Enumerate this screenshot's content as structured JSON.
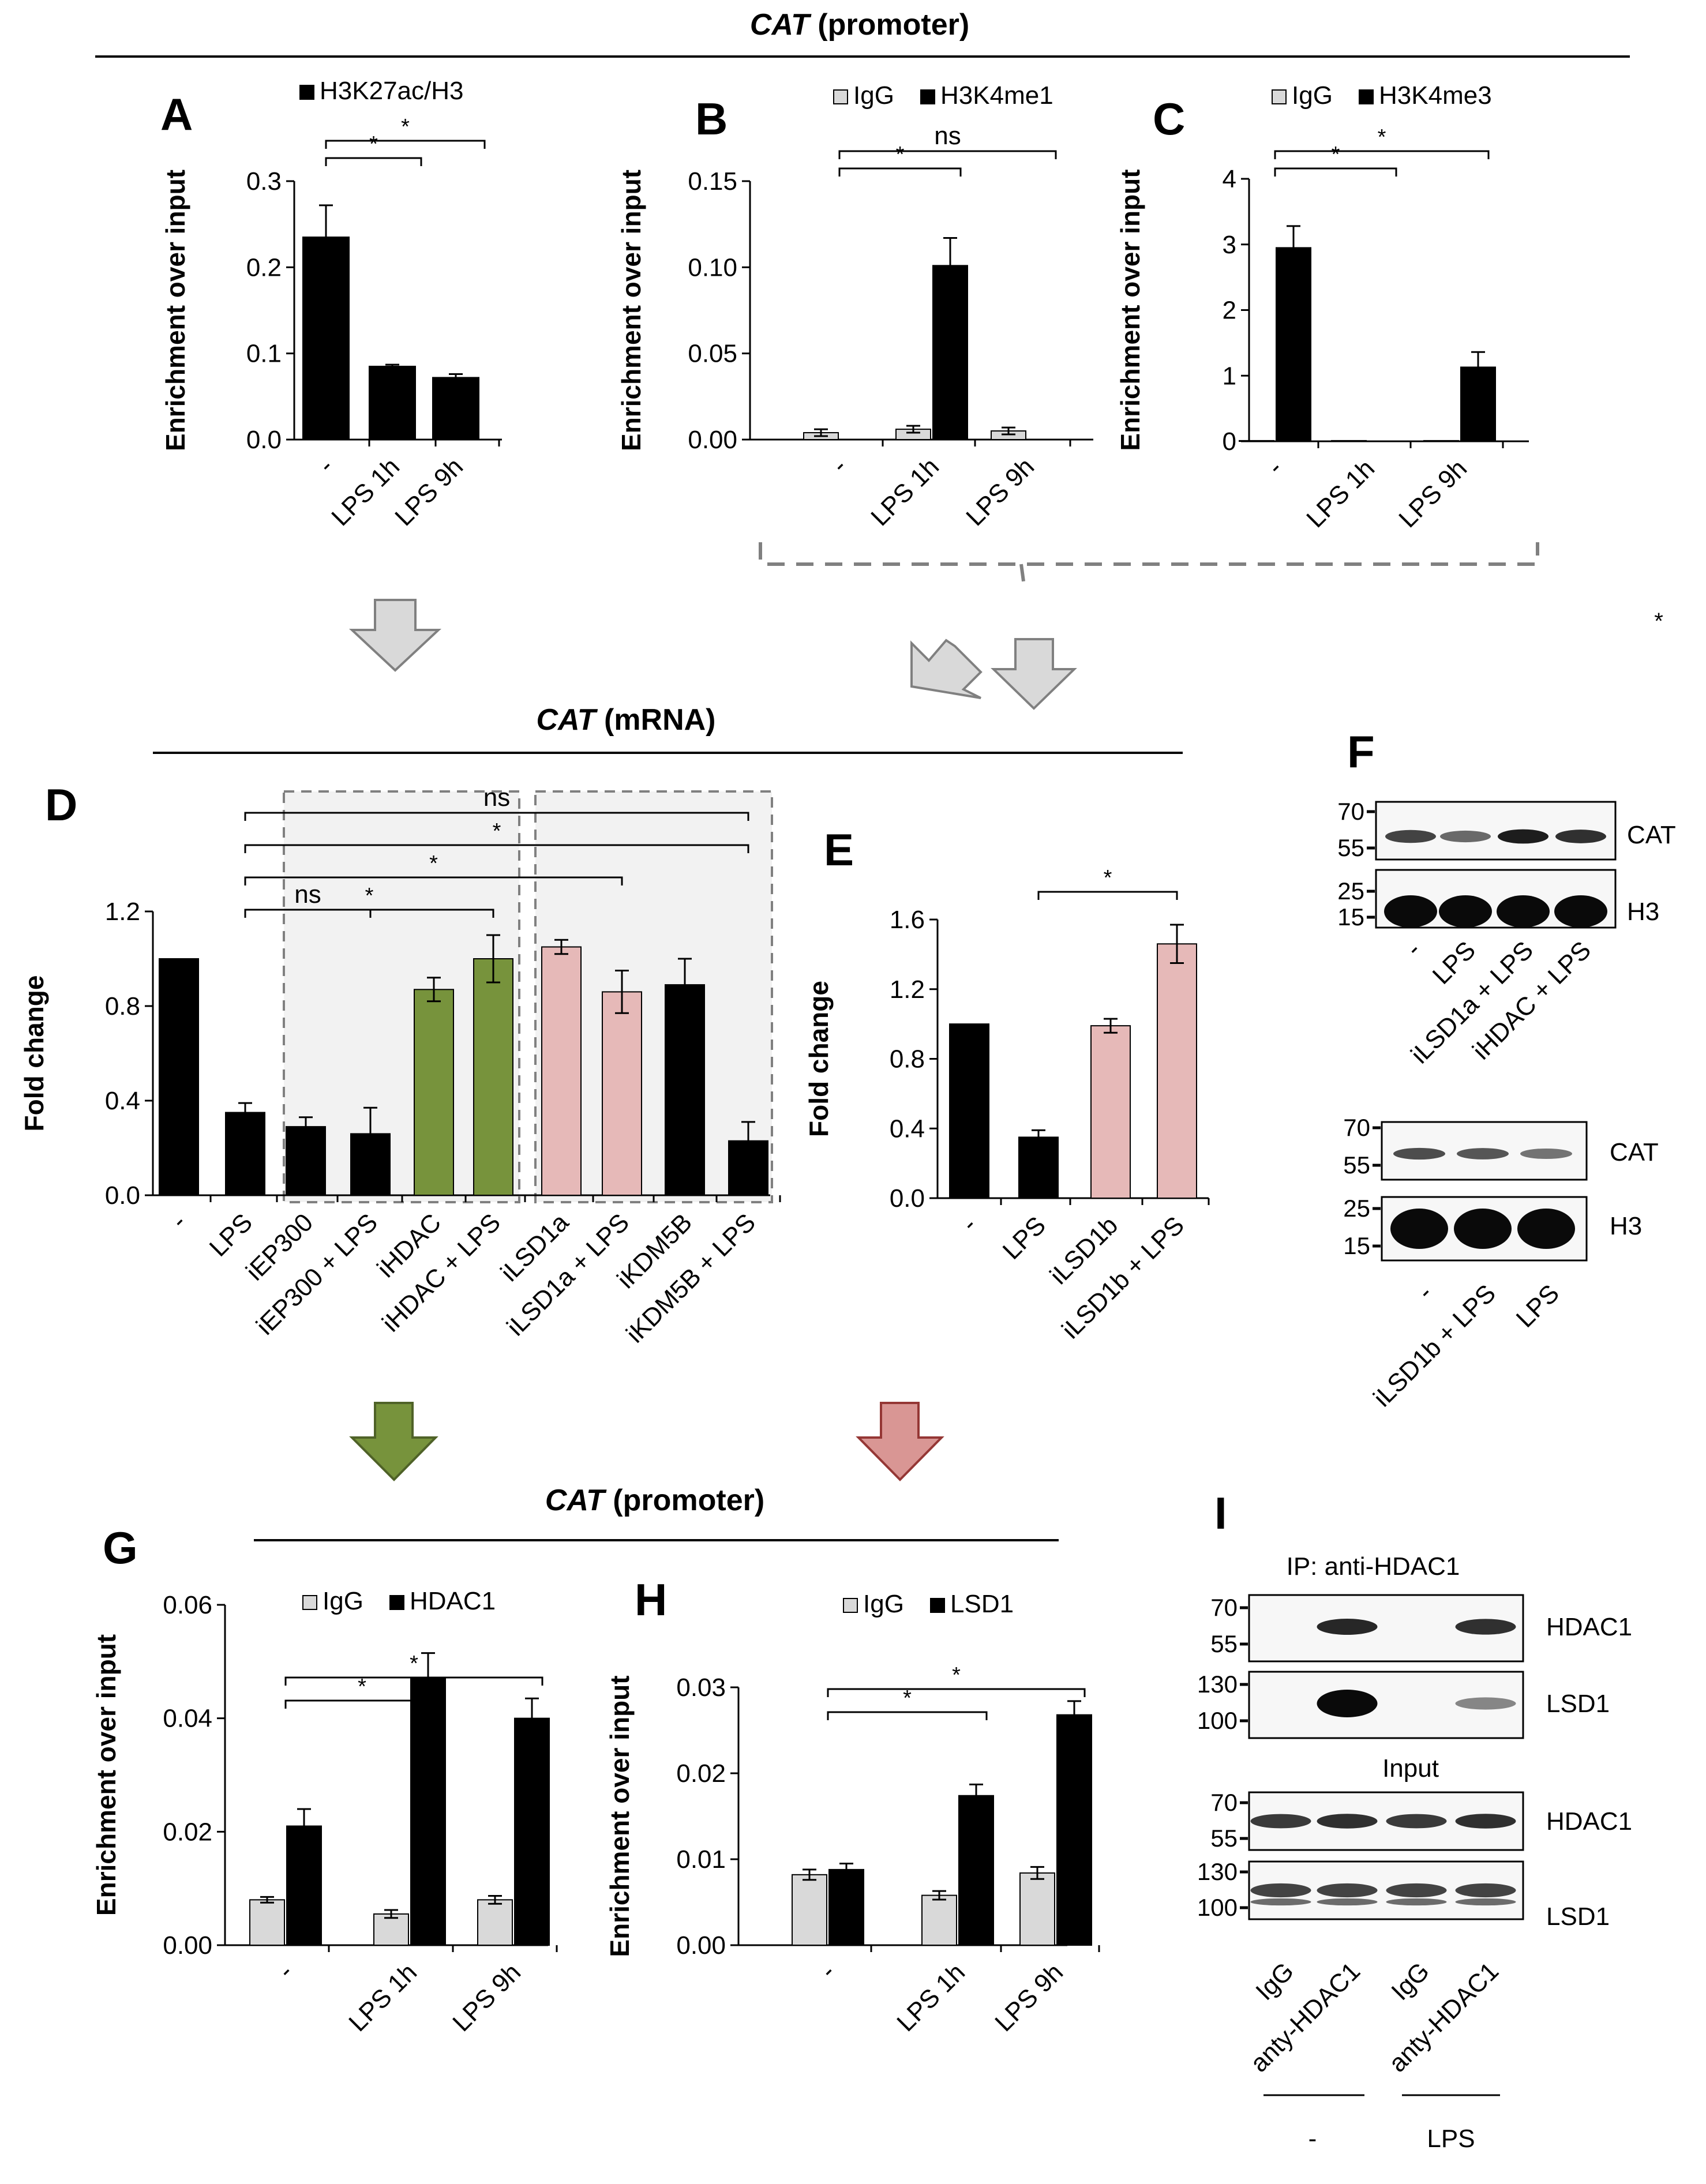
{
  "figure": {
    "sections": [
      {
        "gene": "CAT",
        "suffix": " (promoter)"
      },
      {
        "gene": "CAT",
        "suffix": " (mRNA)"
      },
      {
        "gene": "CAT",
        "suffix": " (promoter)"
      }
    ],
    "stray_mark": "*"
  },
  "colors": {
    "black": "#000000",
    "igg": "#d9d9d9",
    "green": "#77933c",
    "pink": "#e6b9b8",
    "arrow_gray": "#d9d9d9",
    "arrow_green": "#77933c",
    "arrow_pink": "#d99694",
    "shade": "#f2f2f2",
    "dash": "#808080"
  },
  "chart_data": [
    {
      "panel": "A",
      "type": "bar",
      "ylabel": "Enrichment over input",
      "ylim": [
        0,
        0.3
      ],
      "yticks": [
        "0.0",
        "0.1",
        "0.2",
        "0.3"
      ],
      "categories": [
        "-",
        "LPS 1h",
        "LPS 9h"
      ],
      "series": [
        {
          "name": "H3K27ac/H3",
          "color": "#000000",
          "values": [
            0.235,
            0.085,
            0.072
          ],
          "errors": [
            0.037,
            0.002,
            0.004
          ]
        }
      ],
      "brackets": [
        {
          "from": 0,
          "to": 1,
          "label": "*",
          "level": 1
        },
        {
          "from": 0,
          "to": 2,
          "label": "*",
          "level": 2
        }
      ]
    },
    {
      "panel": "B",
      "type": "bar",
      "ylabel": "Enrichment over input",
      "ylim": [
        0,
        0.15
      ],
      "yticks": [
        "0.00",
        "0.05",
        "0.10",
        "0.15"
      ],
      "categories": [
        "-",
        "LPS 1h",
        "LPS 9h"
      ],
      "series": [
        {
          "name": "IgG",
          "color": "#d9d9d9",
          "values": [
            0.004,
            0.006,
            0.005
          ],
          "errors": [
            0.002,
            0.002,
            0.002
          ]
        },
        {
          "name": "H3K4me1",
          "color": "#000000",
          "values": [
            0.0,
            0.101,
            0.0
          ],
          "errors": [
            0,
            0.016,
            0
          ]
        }
      ],
      "brackets": [
        {
          "from": 0,
          "to": 1,
          "label": "*",
          "level": 1
        },
        {
          "from": 0,
          "to": 2,
          "label": "ns",
          "level": 2
        }
      ]
    },
    {
      "panel": "C",
      "type": "bar",
      "ylabel": "Enrichment over input",
      "ylim": [
        0,
        4
      ],
      "yticks": [
        "0",
        "1",
        "2",
        "3",
        "4"
      ],
      "categories": [
        "-",
        "LPS 1h",
        "LPS 9h"
      ],
      "series": [
        {
          "name": "IgG",
          "color": "#d9d9d9",
          "values": [
            0.01,
            0.01,
            0.01
          ],
          "errors": [
            0,
            0,
            0
          ]
        },
        {
          "name": "H3K4me3",
          "color": "#000000",
          "values": [
            2.95,
            0.0,
            1.13
          ],
          "errors": [
            0.33,
            0,
            0.23
          ]
        }
      ],
      "brackets": [
        {
          "from": 0,
          "to": 1,
          "label": "*",
          "level": 1
        },
        {
          "from": 0,
          "to": 2,
          "label": "*",
          "level": 2
        }
      ]
    },
    {
      "panel": "D",
      "type": "bar",
      "ylabel": "Fold change",
      "ylim": [
        0,
        1.2
      ],
      "yticks": [
        "0.0",
        "0.4",
        "0.8",
        "1.2"
      ],
      "categories": [
        "-",
        "LPS",
        "iEP300",
        "iEP300 + LPS",
        "iHDAC",
        "iHDAC + LPS",
        "iLSD1a",
        "iLSD1a + LPS",
        "iKDM5B",
        "iKDM5B + LPS"
      ],
      "series": [
        {
          "name": "Fold change",
          "values": [
            1.0,
            0.35,
            0.29,
            0.26,
            0.87,
            1.0,
            1.05,
            0.86,
            0.89,
            0.23
          ],
          "errors": [
            0,
            0.04,
            0.04,
            0.11,
            0.05,
            0.1,
            0.03,
            0.09,
            0.11,
            0.08
          ],
          "colors": [
            "#000000",
            "#000000",
            "#000000",
            "#000000",
            "#77933c",
            "#77933c",
            "#e6b9b8",
            "#e6b9b8",
            "#000000",
            "#000000"
          ]
        }
      ],
      "brackets": [
        {
          "from": 1,
          "to": 3,
          "label": "ns",
          "level": 1
        },
        {
          "from": 1,
          "to": 5,
          "label": "*",
          "level": 1
        },
        {
          "from": 1,
          "to": 7,
          "label": "*",
          "level": 2
        },
        {
          "from": 1,
          "to": 9,
          "label": "*",
          "level": 3
        },
        {
          "from": 1,
          "to": 9,
          "label": "ns",
          "level": 4
        }
      ]
    },
    {
      "panel": "E",
      "type": "bar",
      "ylabel": "Fold change",
      "ylim": [
        0,
        1.6
      ],
      "yticks": [
        "0.0",
        "0.4",
        "0.8",
        "1.2",
        "1.6"
      ],
      "categories": [
        "-",
        "LPS",
        "iLSD1b",
        "iLSD1b + LPS"
      ],
      "series": [
        {
          "name": "Fold change",
          "values": [
            1.0,
            0.35,
            0.99,
            1.46
          ],
          "errors": [
            0,
            0.04,
            0.04,
            0.11
          ],
          "colors": [
            "#000000",
            "#000000",
            "#e6b9b8",
            "#e6b9b8"
          ]
        }
      ],
      "brackets": [
        {
          "from": 1,
          "to": 3,
          "label": "*",
          "level": 1
        }
      ]
    },
    {
      "panel": "G",
      "type": "bar",
      "ylabel": "Enrichment over input",
      "ylim": [
        0,
        0.06
      ],
      "yticks": [
        "0.00",
        "0.02",
        "0.04",
        "0.06"
      ],
      "categories": [
        "-",
        "LPS 1h",
        "LPS 9h"
      ],
      "series": [
        {
          "name": "IgG",
          "color": "#d9d9d9",
          "values": [
            0.008,
            0.0055,
            0.008
          ],
          "errors": [
            0.0005,
            0.0007,
            0.0007
          ]
        },
        {
          "name": "HDAC1",
          "color": "#000000",
          "values": [
            0.021,
            0.047,
            0.04
          ],
          "errors": [
            0.003,
            0.0045,
            0.0035
          ]
        }
      ],
      "brackets": [
        {
          "from": 0,
          "to": 1,
          "label": "*",
          "level": 1
        },
        {
          "from": 0,
          "to": 2,
          "label": "*",
          "level": 2
        }
      ]
    },
    {
      "panel": "H",
      "type": "bar",
      "ylabel": "Enrichment over input",
      "ylim": [
        0,
        0.03
      ],
      "yticks": [
        "0.00",
        "0.01",
        "0.02",
        "0.03"
      ],
      "categories": [
        "-",
        "LPS 1h",
        "LPS 9h"
      ],
      "series": [
        {
          "name": "IgG",
          "color": "#d9d9d9",
          "values": [
            0.0082,
            0.0058,
            0.0084
          ],
          "errors": [
            0.0006,
            0.0005,
            0.0007
          ]
        },
        {
          "name": "LSD1",
          "color": "#000000",
          "values": [
            0.0088,
            0.0174,
            0.0268
          ],
          "errors": [
            0.0007,
            0.0013,
            0.0016
          ]
        }
      ],
      "brackets": [
        {
          "from": 0,
          "to": 1,
          "label": "*",
          "level": 1
        },
        {
          "from": 0,
          "to": 2,
          "label": "*",
          "level": 2
        }
      ]
    }
  ],
  "blots": {
    "F": {
      "top": {
        "markers": [
          "70",
          "55",
          "25",
          "15"
        ],
        "rows": [
          {
            "label": "CAT",
            "intensity": [
              0.7,
              0.5,
              0.9,
              0.8
            ]
          },
          {
            "label": "H3",
            "intensity": [
              1,
              1,
              1,
              1
            ]
          }
        ],
        "lanes": [
          "-",
          "LPS",
          "iLSD1a + LPS",
          "iHDAC + LPS"
        ]
      },
      "bottom": {
        "markers": [
          "70",
          "55",
          "25",
          "15"
        ],
        "rows": [
          {
            "label": "CAT",
            "intensity": [
              0.65,
              0.6,
              0.45
            ]
          },
          {
            "label": "H3",
            "intensity": [
              1,
              1,
              1
            ]
          }
        ],
        "lanes": [
          "-",
          "iLSD1b + LPS",
          "LPS"
        ]
      }
    },
    "I": {
      "ip_title": "IP: anti-HDAC1",
      "input_title": "Input",
      "ip_rows": [
        {
          "label": "HDAC1",
          "markers": [
            "70",
            "55"
          ],
          "intensity": [
            0,
            0.85,
            0,
            0.8
          ]
        },
        {
          "label": "LSD1",
          "markers": [
            "130",
            "100"
          ],
          "intensity": [
            0,
            1,
            0,
            0.35
          ]
        }
      ],
      "input_rows": [
        {
          "label": "HDAC1",
          "markers": [
            "70",
            "55"
          ],
          "intensity": [
            0.75,
            0.8,
            0.75,
            0.8
          ]
        },
        {
          "label": "LSD1",
          "markers": [
            "130",
            "100"
          ],
          "intensity": [
            0.7,
            0.7,
            0.7,
            0.7
          ]
        }
      ],
      "lanes": [
        "IgG",
        "anty-HDAC1",
        "IgG",
        "anty-HDAC1"
      ],
      "groups": [
        "-",
        "LPS"
      ]
    }
  }
}
